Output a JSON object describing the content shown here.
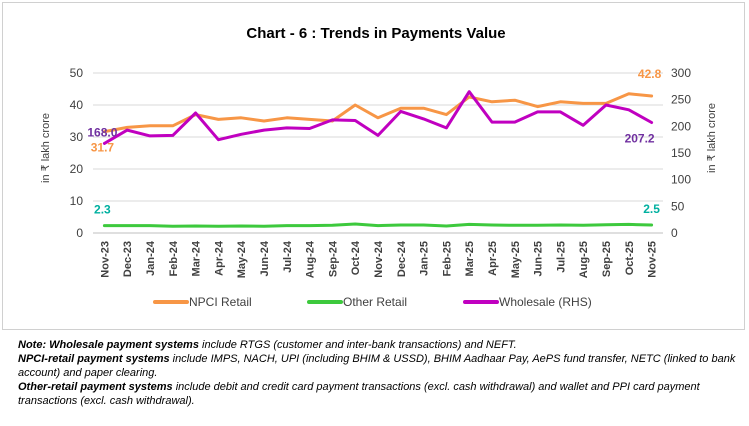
{
  "chart_data": {
    "type": "line",
    "title": "Chart - 6 : Trends in Payments Value",
    "ylabel_left": "in ₹ lakh crore",
    "ylabel_right": "in ₹ lakh crore",
    "ylim_left": [
      0,
      50
    ],
    "yticks_left": [
      0,
      10,
      20,
      30,
      40,
      50
    ],
    "ylim_right": [
      0,
      300
    ],
    "yticks_right": [
      0,
      50,
      100,
      150,
      200,
      250,
      300
    ],
    "categories": [
      "Nov-23",
      "Dec-23",
      "Jan-24",
      "Feb-24",
      "Mar-24",
      "Apr-24",
      "May-24",
      "Jun-24",
      "Jul-24",
      "Aug-24",
      "Sep-24",
      "Oct-24",
      "Nov-24",
      "Dec-24",
      "Jan-25",
      "Feb-25",
      "Mar-25",
      "Apr-25",
      "May-25",
      "Jun-25",
      "Jul-25",
      "Aug-25",
      "Sep-25",
      "Oct-25",
      "Nov-25"
    ],
    "series": [
      {
        "name": "NPCI Retail",
        "axis": "left",
        "color": "#F79646",
        "values": [
          31.7,
          33.0,
          33.5,
          33.5,
          37.0,
          35.5,
          36.0,
          35.0,
          36.0,
          35.5,
          35.0,
          40.0,
          36.0,
          39.0,
          39.0,
          37.0,
          42.5,
          41.0,
          41.5,
          39.5,
          41.0,
          40.5,
          40.5,
          43.5,
          42.8
        ]
      },
      {
        "name": "Other Retail",
        "axis": "left",
        "color": "#3DC93D",
        "values": [
          2.3,
          2.3,
          2.3,
          2.1,
          2.2,
          2.1,
          2.2,
          2.1,
          2.3,
          2.3,
          2.4,
          2.8,
          2.3,
          2.5,
          2.5,
          2.2,
          2.7,
          2.5,
          2.4,
          2.4,
          2.5,
          2.4,
          2.6,
          2.7,
          2.5
        ]
      },
      {
        "name": "Wholesale (RHS)",
        "axis": "right",
        "color": "#C000C0",
        "values": [
          168.0,
          193.0,
          182.0,
          183.0,
          225.0,
          175.0,
          185.0,
          193.0,
          197.0,
          196.0,
          212.0,
          211.0,
          183.0,
          228.0,
          214.0,
          197.0,
          265.0,
          208.0,
          208.0,
          227.0,
          227.0,
          202.0,
          240.0,
          231.0,
          207.2
        ]
      }
    ],
    "annotations": [
      {
        "series": "Wholesale (RHS)",
        "index": 0,
        "text": "168.0",
        "color": "#7030A0"
      },
      {
        "series": "NPCI Retail",
        "index": 0,
        "text": "31.7",
        "color": "#F79646"
      },
      {
        "series": "Other Retail",
        "index": 0,
        "text": "2.3",
        "color": "#00B0A0"
      },
      {
        "series": "NPCI Retail",
        "index": 24,
        "text": "42.8",
        "color": "#F79646"
      },
      {
        "series": "Wholesale (RHS)",
        "index": 24,
        "text": "207.2",
        "color": "#7030A0"
      },
      {
        "series": "Other Retail",
        "index": 24,
        "text": "2.5",
        "color": "#00B0A0"
      }
    ],
    "legend": [
      "NPCI Retail",
      "Other Retail",
      "Wholesale (RHS)"
    ],
    "legend_position": "bottom",
    "grid": true
  },
  "notes": {
    "wholesale_label": "Note: Wholesale payment systems",
    "wholesale_text": " include RTGS (customer and inter-bank transactions) and NEFT.",
    "npci_label": "NPCI-retail payment systems",
    "npci_text": " include IMPS, NACH, UPI (including BHIM & USSD), BHIM Aadhaar Pay, AePS fund transfer, NETC (linked to bank account) and paper clearing.",
    "other_label": "Other-retail payment systems",
    "other_text": " include debit and credit card payment transactions (excl. cash withdrawal) and wallet and PPI card payment transactions (excl. cash withdrawal)."
  }
}
